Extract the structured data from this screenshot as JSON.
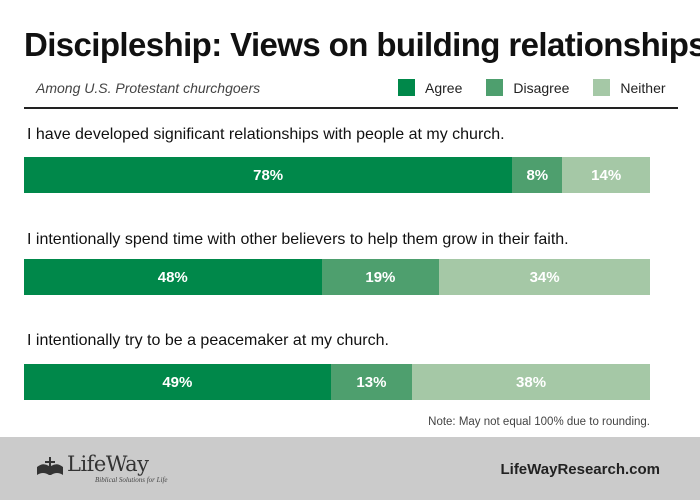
{
  "chart_data": {
    "type": "bar",
    "stacked": true,
    "orientation": "horizontal",
    "title": "Discipleship: Views on building relationships",
    "subtitle": "Among U.S. Protestant churchgoers",
    "legend_position": "top-right",
    "grid": false,
    "series": [
      {
        "name": "Agree",
        "color": "#00884a"
      },
      {
        "name": "Disagree",
        "color": "#4e9f6e"
      },
      {
        "name": "Neither",
        "color": "#a5c8a6"
      }
    ],
    "rows": [
      {
        "question": "I have developed significant relationships with people at my church.",
        "values": [
          78,
          8,
          14
        ],
        "labels": [
          "78%",
          "8%",
          "14%"
        ]
      },
      {
        "question": "I intentionally spend time with other believers to help them grow in their faith.",
        "values": [
          48,
          19,
          34
        ],
        "labels": [
          "48%",
          "19%",
          "34%"
        ]
      },
      {
        "question": "I intentionally try to be a peacemaker at my church.",
        "values": [
          49,
          13,
          38
        ],
        "labels": [
          "49%",
          "13%",
          "38%"
        ]
      }
    ],
    "note": "Note: May not equal 100% due to rounding."
  },
  "footer": {
    "logo_name": "LifeWay",
    "logo_tagline": "Biblical Solutions for Life",
    "logo_icon": "lifeway-cross-book-icon",
    "website": "LifeWayResearch.com"
  }
}
